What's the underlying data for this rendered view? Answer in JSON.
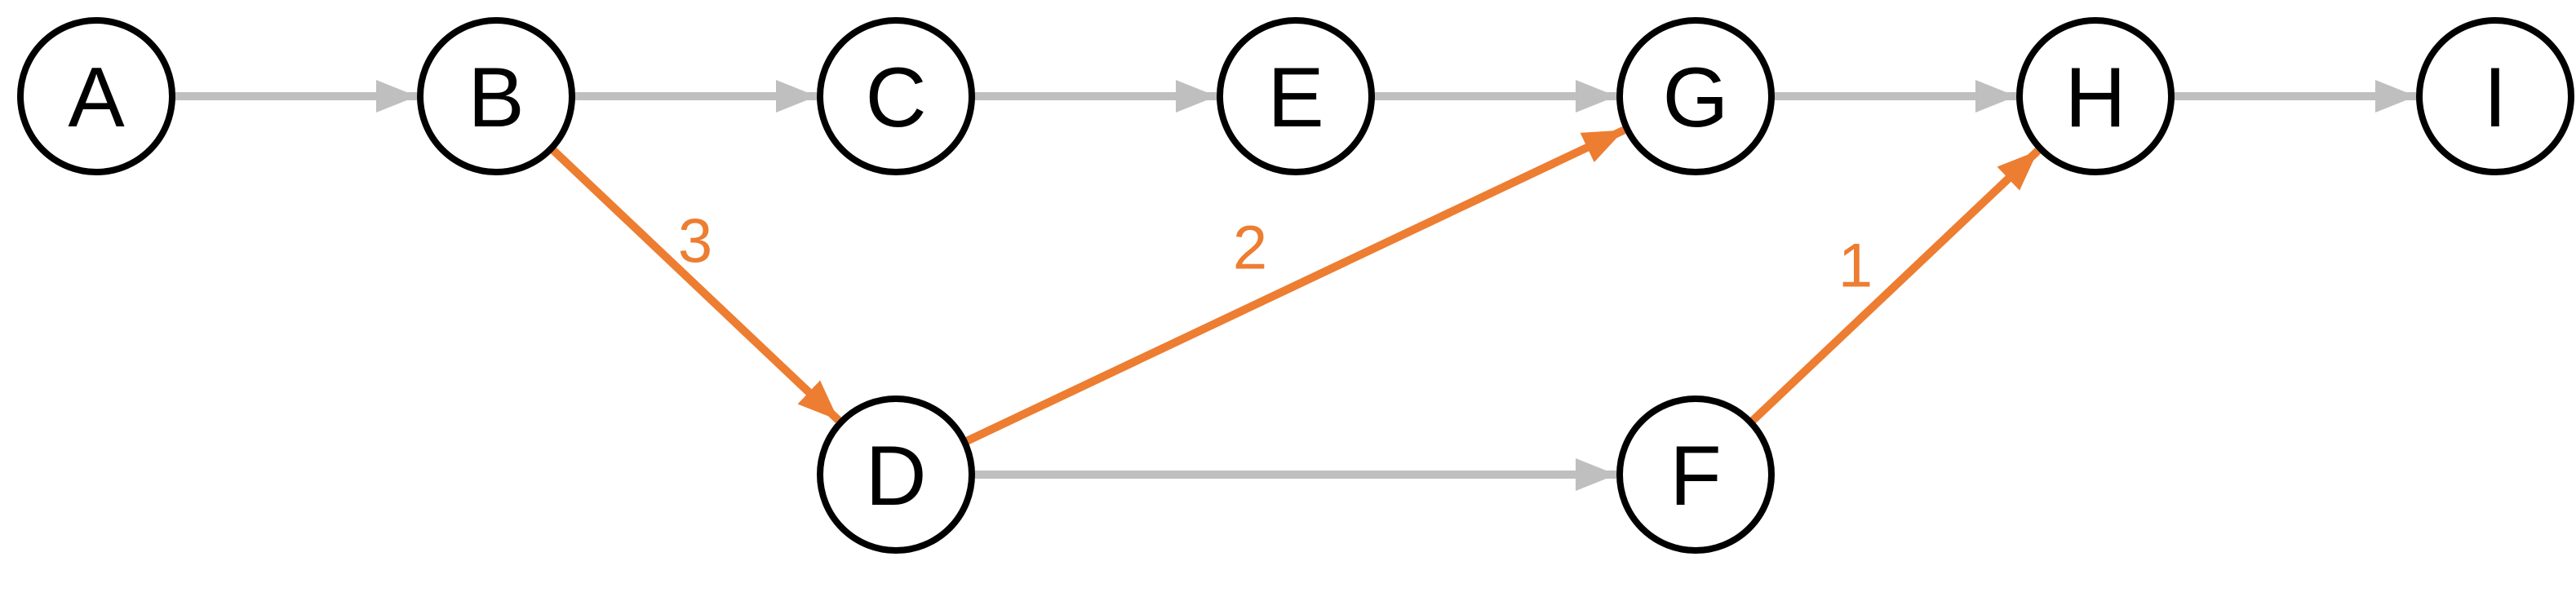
{
  "colors": {
    "node_stroke": "#000000",
    "node_fill": "#ffffff",
    "label": "#000000",
    "edge_default": "#bfbfbf",
    "edge_highlight": "#ed7d31"
  },
  "nodes": [
    {
      "id": "A",
      "label": "A"
    },
    {
      "id": "B",
      "label": "B"
    },
    {
      "id": "C",
      "label": "C"
    },
    {
      "id": "E",
      "label": "E"
    },
    {
      "id": "G",
      "label": "G"
    },
    {
      "id": "H",
      "label": "H"
    },
    {
      "id": "I",
      "label": "I"
    },
    {
      "id": "D",
      "label": "D"
    },
    {
      "id": "F",
      "label": "F"
    }
  ],
  "edges": [
    {
      "from": "A",
      "to": "B",
      "highlight": false,
      "label": ""
    },
    {
      "from": "B",
      "to": "C",
      "highlight": false,
      "label": ""
    },
    {
      "from": "C",
      "to": "E",
      "highlight": false,
      "label": ""
    },
    {
      "from": "E",
      "to": "G",
      "highlight": false,
      "label": ""
    },
    {
      "from": "G",
      "to": "H",
      "highlight": false,
      "label": ""
    },
    {
      "from": "H",
      "to": "I",
      "highlight": false,
      "label": ""
    },
    {
      "from": "D",
      "to": "F",
      "highlight": false,
      "label": ""
    },
    {
      "from": "B",
      "to": "D",
      "highlight": true,
      "label": "3"
    },
    {
      "from": "D",
      "to": "G",
      "highlight": true,
      "label": "2"
    },
    {
      "from": "F",
      "to": "H",
      "highlight": true,
      "label": "1"
    }
  ]
}
